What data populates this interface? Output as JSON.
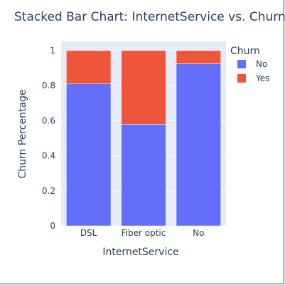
{
  "chart_data": {
    "type": "bar",
    "stacked": true,
    "title": "Stacked Bar Chart: InternetService vs. Churn",
    "xlabel": "InternetService",
    "ylabel": "Churn Percentage",
    "categories": [
      "DSL",
      "Fiber optic",
      "No"
    ],
    "series": [
      {
        "name": "No",
        "values": [
          0.81,
          0.58,
          0.925
        ],
        "color": "#636efa"
      },
      {
        "name": "Yes",
        "values": [
          0.19,
          0.42,
          0.075
        ],
        "color": "#ef553b"
      }
    ],
    "ylim": [
      0,
      1
    ],
    "yticks": [
      0,
      0.2,
      0.4,
      0.6,
      0.8,
      1
    ],
    "ytick_labels": [
      "0",
      "0.2",
      "0.4",
      "0.6",
      "0.8",
      "1"
    ],
    "legend": {
      "title": "Churn",
      "position": "top-right"
    },
    "grid": true,
    "plot_background": "#e5ecf6"
  }
}
